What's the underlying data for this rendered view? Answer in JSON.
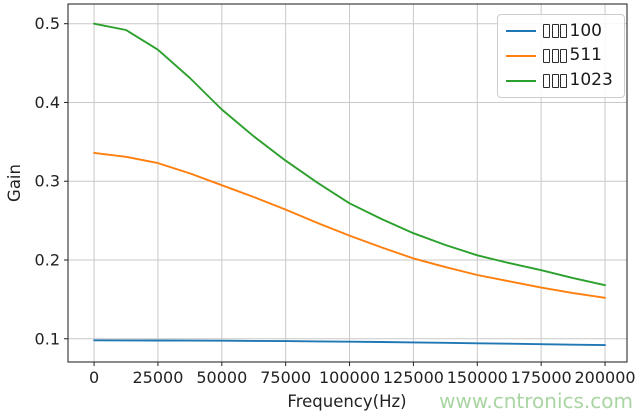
{
  "watermark": {
    "text": "www.cntronics.com",
    "color": "#a9d5a2"
  },
  "chart_data": {
    "type": "line",
    "title": "",
    "xlabel": "Frequency(Hz)",
    "ylabel": "Gain",
    "grid": true,
    "legend_position": "upper right",
    "xlim": [
      -10200,
      208600
    ],
    "ylim": [
      0.0705,
      0.525
    ],
    "x_ticks": [
      0,
      25000,
      50000,
      75000,
      100000,
      125000,
      150000,
      175000,
      200000
    ],
    "x_tick_labels": [
      "0",
      "25000",
      "50000",
      "75000",
      "100000",
      "125000",
      "150000",
      "175000",
      "200000"
    ],
    "y_ticks": [
      0.1,
      0.2,
      0.3,
      0.4,
      0.5
    ],
    "y_tick_labels": [
      "0.1",
      "0.2",
      "0.3",
      "0.4",
      "0.5"
    ],
    "x": [
      0,
      12500,
      25000,
      37500,
      50000,
      62500,
      75000,
      87500,
      100000,
      112500,
      125000,
      137500,
      150000,
      162500,
      175000,
      187500,
      200000
    ],
    "series": [
      {
        "name": "□□□100",
        "label_suffix": "100",
        "missing_glyph_boxes": 3,
        "color": "#1f77b4",
        "values": [
          0.098,
          0.0979,
          0.0978,
          0.0977,
          0.0975,
          0.0973,
          0.097,
          0.0967,
          0.0963,
          0.0959,
          0.0954,
          0.0949,
          0.0943,
          0.0937,
          0.0931,
          0.0925,
          0.092
        ]
      },
      {
        "name": "□□□511",
        "label_suffix": "511",
        "missing_glyph_boxes": 3,
        "color": "#ff7f0e",
        "values": [
          0.336,
          0.331,
          0.323,
          0.31,
          0.295,
          0.28,
          0.264,
          0.247,
          0.231,
          0.216,
          0.202,
          0.191,
          0.181,
          0.173,
          0.165,
          0.158,
          0.152
        ]
      },
      {
        "name": "□□□1023",
        "label_suffix": "1023",
        "missing_glyph_boxes": 3,
        "color": "#2ca02c",
        "values": [
          0.5,
          0.492,
          0.467,
          0.431,
          0.391,
          0.357,
          0.326,
          0.298,
          0.272,
          0.252,
          0.234,
          0.219,
          0.206,
          0.196,
          0.187,
          0.177,
          0.168
        ]
      }
    ]
  }
}
